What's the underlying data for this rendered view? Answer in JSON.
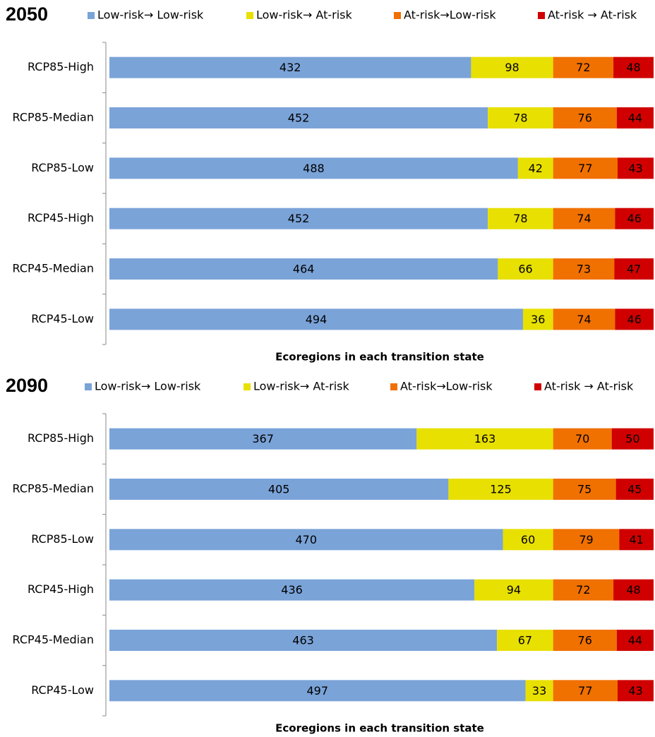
{
  "chart_data": [
    {
      "type": "bar",
      "stacked": true,
      "orientation": "horizontal",
      "title": "2050",
      "x_label": "Ecoregions in each transition state",
      "categories": [
        "RCP85-High",
        "RCP85-Median",
        "RCP85-Low",
        "RCP45-High",
        "RCP45-Median",
        "RCP45-Low"
      ],
      "xlim": [
        0,
        650
      ],
      "series": [
        {
          "name": "Low-risk→ Low-risk",
          "color": "#7aa3d8",
          "values": [
            432,
            452,
            488,
            452,
            464,
            494
          ]
        },
        {
          "name": "Low-risk→ At-risk",
          "color": "#e8e000",
          "values": [
            98,
            78,
            42,
            78,
            66,
            36
          ]
        },
        {
          "name": "At-risk→Low-risk",
          "color": "#f07000",
          "values": [
            72,
            76,
            77,
            74,
            73,
            74
          ]
        },
        {
          "name": "At-risk → At-risk",
          "color": "#d00000",
          "values": [
            48,
            44,
            43,
            46,
            47,
            46
          ]
        }
      ]
    },
    {
      "type": "bar",
      "stacked": true,
      "orientation": "horizontal",
      "title": "2090",
      "x_label": "Ecoregions in each transition state",
      "categories": [
        "RCP85-High",
        "RCP85-Median",
        "RCP85-Low",
        "RCP45-High",
        "RCP45-Median",
        "RCP45-Low"
      ],
      "xlim": [
        0,
        650
      ],
      "series": [
        {
          "name": "Low-risk→ Low-risk",
          "color": "#7aa3d8",
          "values": [
            367,
            405,
            470,
            436,
            463,
            497
          ]
        },
        {
          "name": "Low-risk→ At-risk",
          "color": "#e8e000",
          "values": [
            163,
            125,
            60,
            94,
            67,
            33
          ]
        },
        {
          "name": "At-risk→Low-risk",
          "color": "#f07000",
          "values": [
            70,
            75,
            79,
            72,
            76,
            77
          ]
        },
        {
          "name": "At-risk → At-risk",
          "color": "#d00000",
          "values": [
            50,
            45,
            41,
            48,
            44,
            43
          ]
        }
      ]
    }
  ]
}
